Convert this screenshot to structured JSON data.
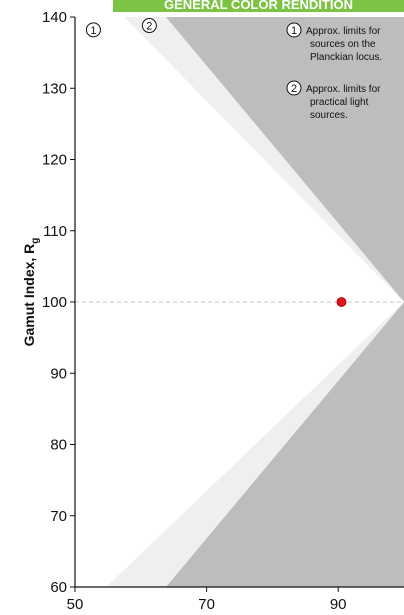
{
  "header": {
    "title": "GENERAL COLOR RENDITION"
  },
  "colors": {
    "banner": "#7cc243",
    "outer_region": "#bdbdbd",
    "practical_band": "#efefef",
    "plot_bg": "#ffffff",
    "reference_line": "#c4c4c4",
    "point": "#e0141e"
  },
  "notes": [
    {
      "marker": "1",
      "lines": [
        "Approx. limits for",
        "sources on the",
        "Planckian locus."
      ]
    },
    {
      "marker": "2",
      "lines": [
        "Approx. limits for",
        "practical light",
        "sources."
      ]
    }
  ],
  "chart_data": {
    "type": "scatter",
    "title": "GENERAL COLOR RENDITION",
    "xlabel": "",
    "ylabel": "Gamut Index, R",
    "ylabel_subscript": "g",
    "xlim": [
      50,
      100
    ],
    "ylim": [
      60,
      140
    ],
    "xticks": [
      50,
      70,
      90
    ],
    "yticks": [
      60,
      70,
      80,
      90,
      100,
      110,
      120,
      130,
      140
    ],
    "reference_line_y": 100,
    "points": [
      {
        "x": 90.5,
        "y": 100
      }
    ],
    "regions": {
      "planckian_limits": {
        "apex": [
          100,
          100
        ],
        "top_x": 53,
        "bottom_x": 50
      },
      "practical_limits": {
        "apex": [
          100,
          100
        ],
        "top_x": 60,
        "bottom_x": 60
      }
    },
    "region_markers": [
      {
        "label": "1",
        "x": 52.8,
        "y": 138.2
      },
      {
        "label": "2",
        "x": 61.3,
        "y": 138.8
      }
    ],
    "grid": false
  }
}
